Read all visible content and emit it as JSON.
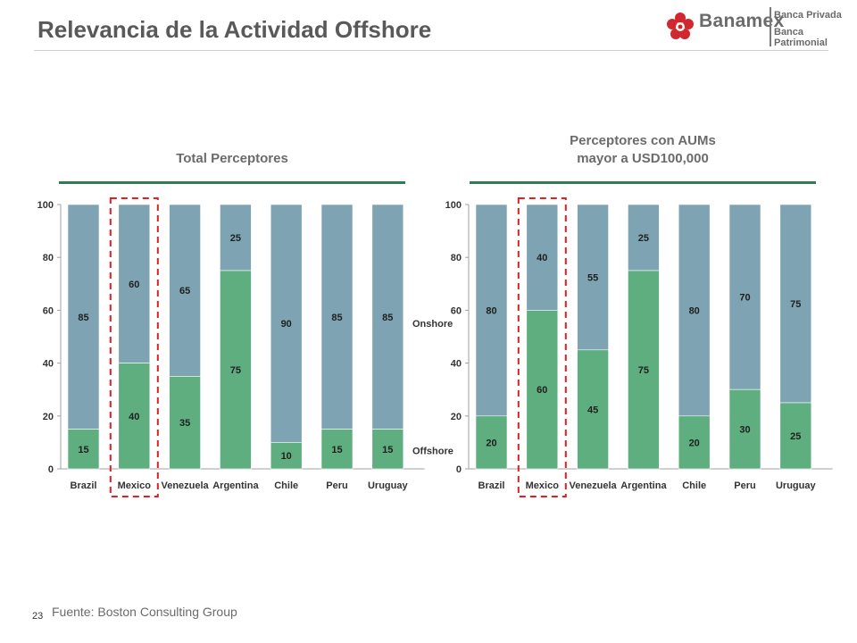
{
  "slide": {
    "title": "Relevancia de la Actividad Offshore",
    "page_number": "23",
    "source": "Fuente: Boston Consulting Group"
  },
  "logo": {
    "brand": "Banamex",
    "line1": "Banca Privada",
    "line2": "Banca Patrimonial"
  },
  "colors": {
    "onshore": "#7ea4b3",
    "offshore": "#5fae7f",
    "highlight": "#e02020",
    "rule": "#2e7d4f"
  },
  "chart_data": [
    {
      "type": "bar",
      "stacked": true,
      "title": "Total Perceptores",
      "categories": [
        "Brazil",
        "Mexico",
        "Venezuela",
        "Argentina",
        "Chile",
        "Peru",
        "Uruguay"
      ],
      "series": [
        {
          "name": "Offshore",
          "values": [
            15,
            40,
            35,
            75,
            10,
            15,
            15
          ]
        },
        {
          "name": "Onshore",
          "values": [
            85,
            60,
            65,
            25,
            90,
            85,
            85
          ]
        }
      ],
      "ylim": [
        0,
        100
      ],
      "yticks": [
        "0",
        "20",
        "40",
        "60",
        "80",
        "100"
      ],
      "highlight_category": "Mexico"
    },
    {
      "type": "bar",
      "stacked": true,
      "title": "Perceptores con AUMs mayor a USD100,000",
      "title_lines": [
        "Perceptores con AUMs",
        "mayor a USD100,000"
      ],
      "categories": [
        "Brazil",
        "Mexico",
        "Venezuela",
        "Argentina",
        "Chile",
        "Peru",
        "Uruguay"
      ],
      "series": [
        {
          "name": "Offshore",
          "values": [
            20,
            60,
            45,
            75,
            20,
            30,
            25
          ]
        },
        {
          "name": "Onshore",
          "values": [
            80,
            40,
            55,
            25,
            80,
            70,
            75
          ]
        }
      ],
      "ylim": [
        0,
        100
      ],
      "yticks": [
        "0",
        "20",
        "40",
        "60",
        "80",
        "100"
      ],
      "highlight_category": "Mexico"
    }
  ]
}
